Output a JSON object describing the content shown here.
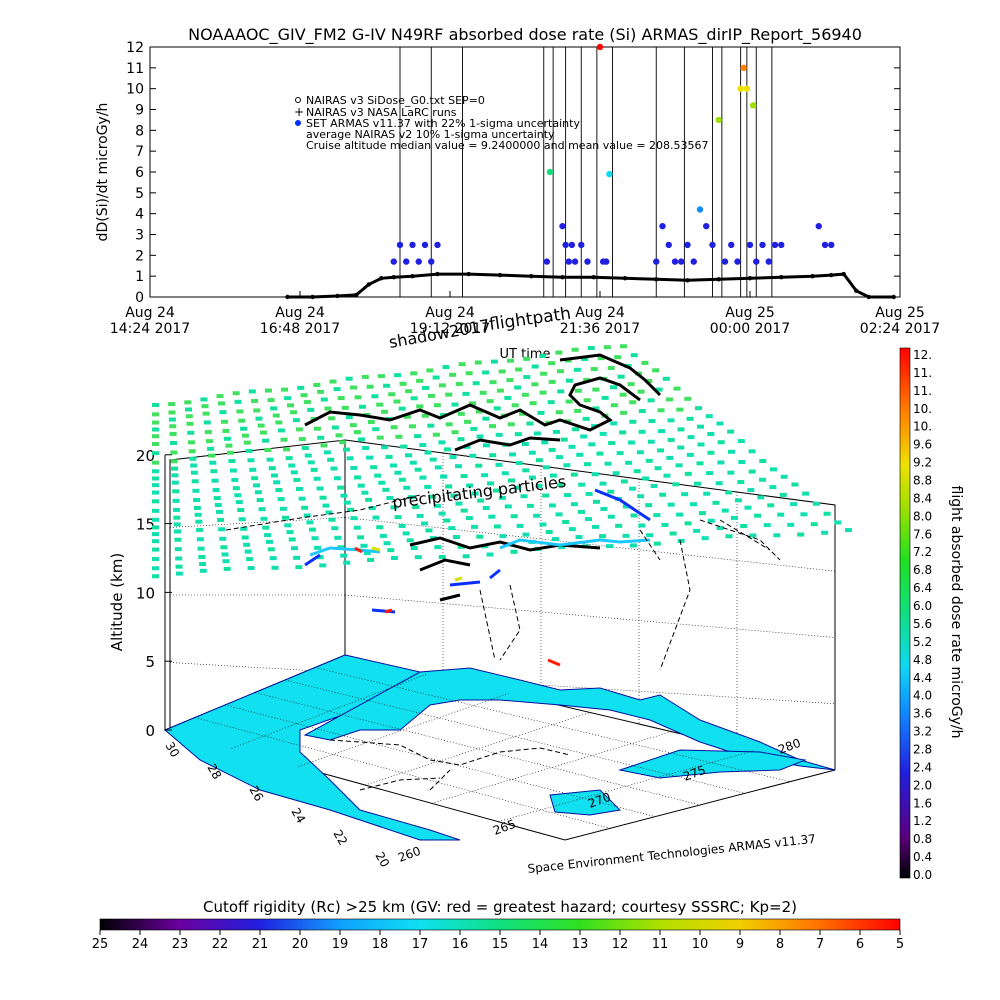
{
  "header": {
    "title": "NOAAAOC_GIV_FM2 G-IV   N49RF  absorbed dose rate (Si) ARMAS_dirIP_Report_56940"
  },
  "top_chart": {
    "ylabel": "dD(Si)/dt microGy/h",
    "xlabel": "UT time",
    "y_ticks": [
      "0",
      "1",
      "2",
      "3",
      "4",
      "5",
      "6",
      "7",
      "8",
      "9",
      "10",
      "11",
      "12"
    ],
    "x_ticks": [
      {
        "day": "Aug 24",
        "time": "14:24 2017"
      },
      {
        "day": "Aug 24",
        "time": "16:48 2017"
      },
      {
        "day": "Aug 24",
        "time": "19:12 2017"
      },
      {
        "day": "Aug 24",
        "time": "21:36 2017"
      },
      {
        "day": "Aug 25",
        "time": "00:00 2017"
      },
      {
        "day": "Aug 25",
        "time": "02:24 2017"
      }
    ],
    "legend": [
      "NAIRAS v3 SiDose_G0.txt SEP=0",
      "NAIRAS v3 NASA LaRC runs",
      "SET ARMAS v11.37 with 22% 1-sigma uncertainty",
      "average NAIRAS v2 10% 1-sigma uncertainty",
      "Cruise altitude median value = 9.2400000 and mean value = 208.53567"
    ]
  },
  "map3d": {
    "labels": [
      "flightpath",
      "shadow2017",
      "precipitating particles"
    ],
    "zlabel": "Altitude (km)",
    "z_ticks": [
      "0",
      "5",
      "10",
      "15",
      "20"
    ],
    "lat_ticks": [
      "30",
      "28",
      "26",
      "24",
      "22",
      "20"
    ],
    "lon_ticks": [
      "260",
      "265",
      "270",
      "275",
      "280"
    ],
    "credit": "Space Environment Technologies ARMAS v11.37"
  },
  "dose_colorbar": {
    "label": "flight absorbed dose rate microGy/h",
    "ticks": [
      "12.",
      "11.",
      "11.",
      "10.",
      "10.",
      "9.6",
      "9.2",
      "8.8",
      "8.4",
      "8.0",
      "7.6",
      "7.2",
      "6.8",
      "6.4",
      "6.0",
      "5.6",
      "5.2",
      "4.8",
      "4.4",
      "4.0",
      "3.6",
      "3.2",
      "2.8",
      "2.4",
      "2.0",
      "1.6",
      "1.2",
      "0.8",
      "0.4",
      "0.0"
    ]
  },
  "rc_colorbar": {
    "label": "Cutoff rigidity (Rc) >25 km (GV: red = greatest hazard; courtesy SSSRC; Kp=2)",
    "ticks": [
      "25",
      "24",
      "23",
      "22",
      "21",
      "20",
      "19",
      "18",
      "17",
      "16",
      "15",
      "14",
      "13",
      "12",
      "11",
      "10",
      "9",
      "8",
      "7",
      "6",
      "5"
    ]
  },
  "chart_data": {
    "type": "scatter",
    "title": "NOAAAOC_GIV_FM2 G-IV   N49RF  absorbed dose rate (Si) ARMAS_dirIP_Report_56940",
    "xlabel": "UT time",
    "ylabel": "dD(Si)/dt microGy/h",
    "x_range_hours": [
      14.4,
      26.4
    ],
    "ylim": [
      0,
      12
    ],
    "series": [
      {
        "name": "NAIRAS v3 SiDose_G0.txt SEP=0",
        "x": [
          16.6,
          17.0,
          17.4,
          17.7,
          17.9,
          18.1,
          18.3,
          18.6,
          19.0,
          19.5,
          20.0,
          20.5,
          21.0,
          21.5,
          22.0,
          22.5,
          23.0,
          23.5,
          24.0,
          24.5,
          25.0,
          25.3,
          25.5,
          25.7,
          25.9,
          26.3
        ],
        "y": [
          0,
          0,
          0.05,
          0.1,
          0.6,
          0.9,
          0.95,
          1.0,
          1.1,
          1.1,
          1.05,
          1.0,
          0.95,
          0.95,
          0.9,
          0.85,
          0.8,
          0.85,
          0.9,
          0.95,
          1.0,
          1.05,
          1.1,
          0.3,
          0,
          0
        ]
      },
      {
        "name": "SET ARMAS v11.37 with 22% 1-sigma uncertainty",
        "x": [
          18.3,
          18.4,
          18.5,
          18.6,
          18.7,
          18.8,
          18.9,
          19.0,
          20.75,
          20.8,
          21.0,
          21.05,
          21.1,
          21.15,
          21.2,
          21.3,
          21.4,
          21.6,
          21.65,
          21.7,
          21.75,
          22.5,
          22.6,
          22.7,
          22.8,
          22.9,
          23.0,
          23.1,
          23.2,
          23.3,
          23.4,
          23.5,
          23.6,
          23.7,
          23.8,
          23.85,
          23.9,
          23.95,
          24.0,
          24.05,
          24.1,
          24.2,
          24.3,
          24.4,
          24.5,
          25.1,
          25.2,
          25.3
        ],
        "y": [
          1.7,
          2.5,
          1.7,
          2.5,
          1.7,
          2.5,
          1.7,
          2.5,
          1.7,
          6.0,
          3.4,
          2.5,
          1.7,
          2.5,
          1.7,
          2.5,
          1.7,
          12.0,
          1.7,
          1.7,
          5.9,
          1.7,
          3.4,
          2.5,
          1.7,
          1.7,
          2.5,
          1.7,
          4.2,
          3.4,
          2.5,
          8.5,
          1.7,
          2.5,
          1.7,
          10.0,
          11.0,
          10.0,
          2.5,
          9.2,
          1.7,
          2.5,
          1.7,
          2.5,
          2.5,
          3.4,
          2.5,
          2.5
        ]
      }
    ]
  }
}
